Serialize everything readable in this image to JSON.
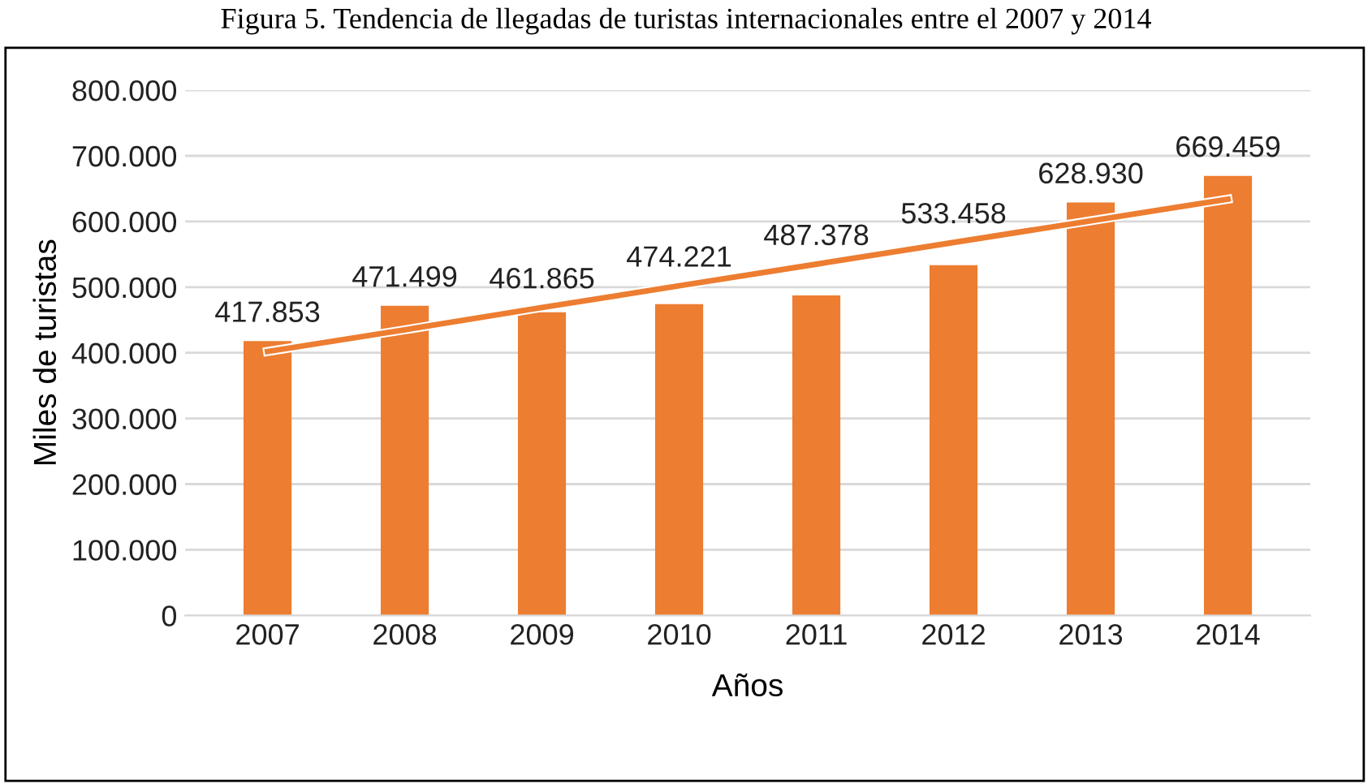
{
  "chart_data": {
    "type": "bar",
    "title": "Figura 5. Tendencia de llegadas de turistas internacionales entre el 2007 y 2014",
    "xlabel": "Años",
    "ylabel": "Miles de turistas",
    "categories": [
      "2007",
      "2008",
      "2009",
      "2010",
      "2011",
      "2012",
      "2013",
      "2014"
    ],
    "series": [
      {
        "color": "#ed7d31",
        "values": [
          417853,
          471499,
          461865,
          474221,
          487378,
          533458,
          628930,
          669459
        ],
        "value_labels": [
          "417.853",
          "471.499",
          "461.865",
          "474.221",
          "487.378",
          "533.458",
          "628.930",
          "669.459"
        ]
      },
      {
        "type": "line",
        "color": "#ed7d31",
        "values": [
          402000,
          435000,
          469000,
          502000,
          535000,
          568000,
          601000,
          634000
        ]
      }
    ],
    "ylim": [
      0,
      800000
    ],
    "yticks": [
      {
        "value": 0,
        "label": "0"
      },
      {
        "value": 100000,
        "label": "100.000"
      },
      {
        "value": 200000,
        "label": "200.000"
      },
      {
        "value": 300000,
        "label": "300.000"
      },
      {
        "value": 400000,
        "label": "400.000"
      },
      {
        "value": 500000,
        "label": "500.000"
      },
      {
        "value": 600000,
        "label": "600.000"
      },
      {
        "value": 700000,
        "label": "700.000"
      },
      {
        "value": 800000,
        "label": "800.000"
      }
    ],
    "grid": "y",
    "legend": false,
    "line_style": "solid"
  }
}
